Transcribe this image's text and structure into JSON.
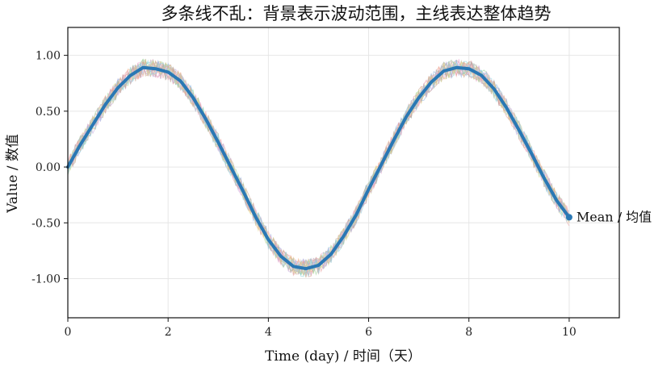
{
  "chart_data": {
    "type": "line",
    "title": "多条线不乱：背景表示波动范围，主线表达整体趋势",
    "xlabel": "Time (day) / 时间（天）",
    "ylabel": "Value / 数值",
    "xlim": [
      0,
      11
    ],
    "ylim": [
      -1.35,
      1.25
    ],
    "x_ticks": [
      0,
      2,
      4,
      6,
      8,
      10
    ],
    "x_tick_labels": [
      "0",
      "2",
      "4",
      "6",
      "8",
      "10"
    ],
    "y_ticks": [
      1.0,
      0.5,
      0.0,
      -0.5,
      -1.0
    ],
    "y_tick_labels": [
      "1.00",
      "0.50",
      "0.00",
      "-0.50",
      "-1.00"
    ],
    "grid": true,
    "background_series_count": 20,
    "background_colors": [
      "#8fb3e0",
      "#f4b183",
      "#9fd39a",
      "#e89b9b",
      "#c3a9de",
      "#c9a38b",
      "#eeb0d8",
      "#bdbdbd",
      "#d8d88a",
      "#8ed6e0"
    ],
    "mean_series": {
      "name": "Mean / 均值",
      "color": "#2a78b4",
      "x": [
        0,
        0.25,
        0.5,
        0.75,
        1.0,
        1.25,
        1.5,
        1.75,
        2.0,
        2.25,
        2.5,
        2.75,
        3.0,
        3.25,
        3.5,
        3.75,
        4.0,
        4.25,
        4.5,
        4.75,
        5.0,
        5.25,
        5.5,
        5.75,
        6.0,
        6.25,
        6.5,
        6.75,
        7.0,
        7.25,
        7.5,
        7.75,
        8.0,
        8.25,
        8.5,
        8.75,
        9.0,
        9.25,
        9.5,
        9.75,
        10.0
      ],
      "y": [
        0.0,
        0.2,
        0.38,
        0.56,
        0.71,
        0.82,
        0.89,
        0.88,
        0.85,
        0.77,
        0.62,
        0.43,
        0.22,
        0.0,
        -0.22,
        -0.45,
        -0.65,
        -0.8,
        -0.89,
        -0.91,
        -0.88,
        -0.78,
        -0.62,
        -0.43,
        -0.2,
        0.02,
        0.24,
        0.45,
        0.62,
        0.76,
        0.86,
        0.89,
        0.88,
        0.82,
        0.7,
        0.53,
        0.33,
        0.12,
        -0.1,
        -0.3,
        -0.45
      ]
    }
  }
}
